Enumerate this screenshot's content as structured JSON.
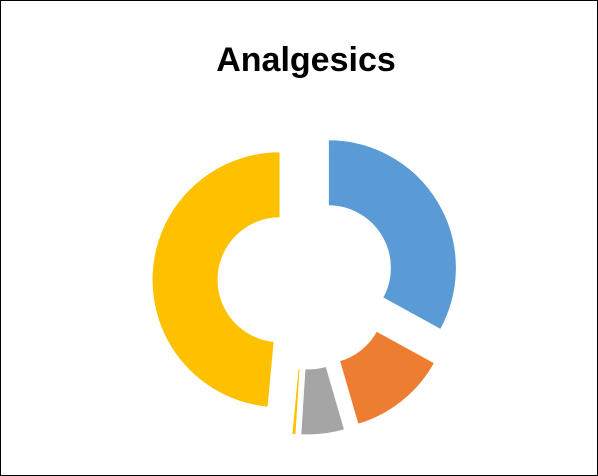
{
  "chart_data": {
    "type": "donut",
    "title": "Analgesics",
    "values": [
      33,
      12.5,
      5.5,
      0.5,
      48.5
    ],
    "colors": [
      "#5b9bd5",
      "#ed7d31",
      "#a5a5a5",
      "#ffc000",
      "#ffc000"
    ],
    "exploded": true
  }
}
